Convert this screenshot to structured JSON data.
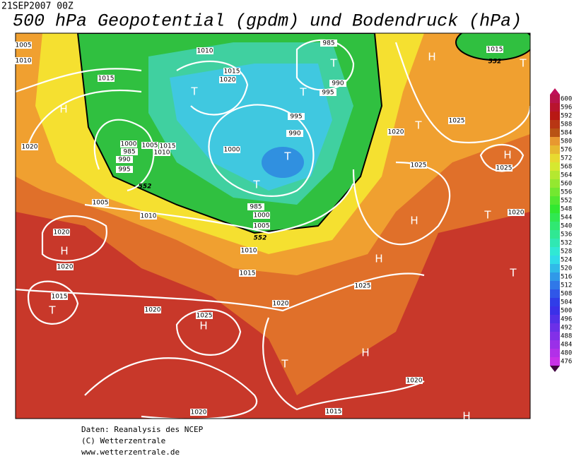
{
  "header": {
    "date": "21SEP2007 00Z",
    "title": "500 hPa Geopotential (gpdm) und Bodendruck (hPa)"
  },
  "footer": [
    "Daten: Reanalysis des NCEP",
    "(C) Wetterzentrale",
    "www.wetterzentrale.de"
  ],
  "isobar_labels": [
    "1010",
    "1015",
    "1020",
    "985",
    "990",
    "995",
    "1015",
    "1015",
    "1020",
    "1025",
    "995",
    "990",
    "1000",
    "985",
    "990",
    "995",
    "1005",
    "1015",
    "1010",
    "1000",
    "1005",
    "1010",
    "985",
    "1000",
    "1005",
    "1010",
    "1015",
    "1020",
    "1025",
    "1025",
    "1020",
    "1020",
    "1020",
    "1025",
    "1015",
    "1020",
    "1025",
    "1020",
    "1020",
    "1020",
    "1015",
    "1005",
    "1010"
  ],
  "contour_labels": [
    "552",
    "552",
    "552"
  ],
  "pressure_centers": [
    "H",
    "T",
    "T",
    "T",
    "T",
    "T",
    "H",
    "T",
    "T",
    "H",
    "H",
    "T",
    "H",
    "H",
    "T",
    "T",
    "H",
    "H",
    "T",
    "H"
  ],
  "colorbar": [
    "600",
    "596",
    "592",
    "588",
    "584",
    "580",
    "576",
    "572",
    "568",
    "564",
    "560",
    "556",
    "552",
    "548",
    "544",
    "540",
    "536",
    "532",
    "528",
    "524",
    "520",
    "516",
    "512",
    "508",
    "504",
    "500",
    "496",
    "492",
    "488",
    "484",
    "480",
    "476"
  ]
}
